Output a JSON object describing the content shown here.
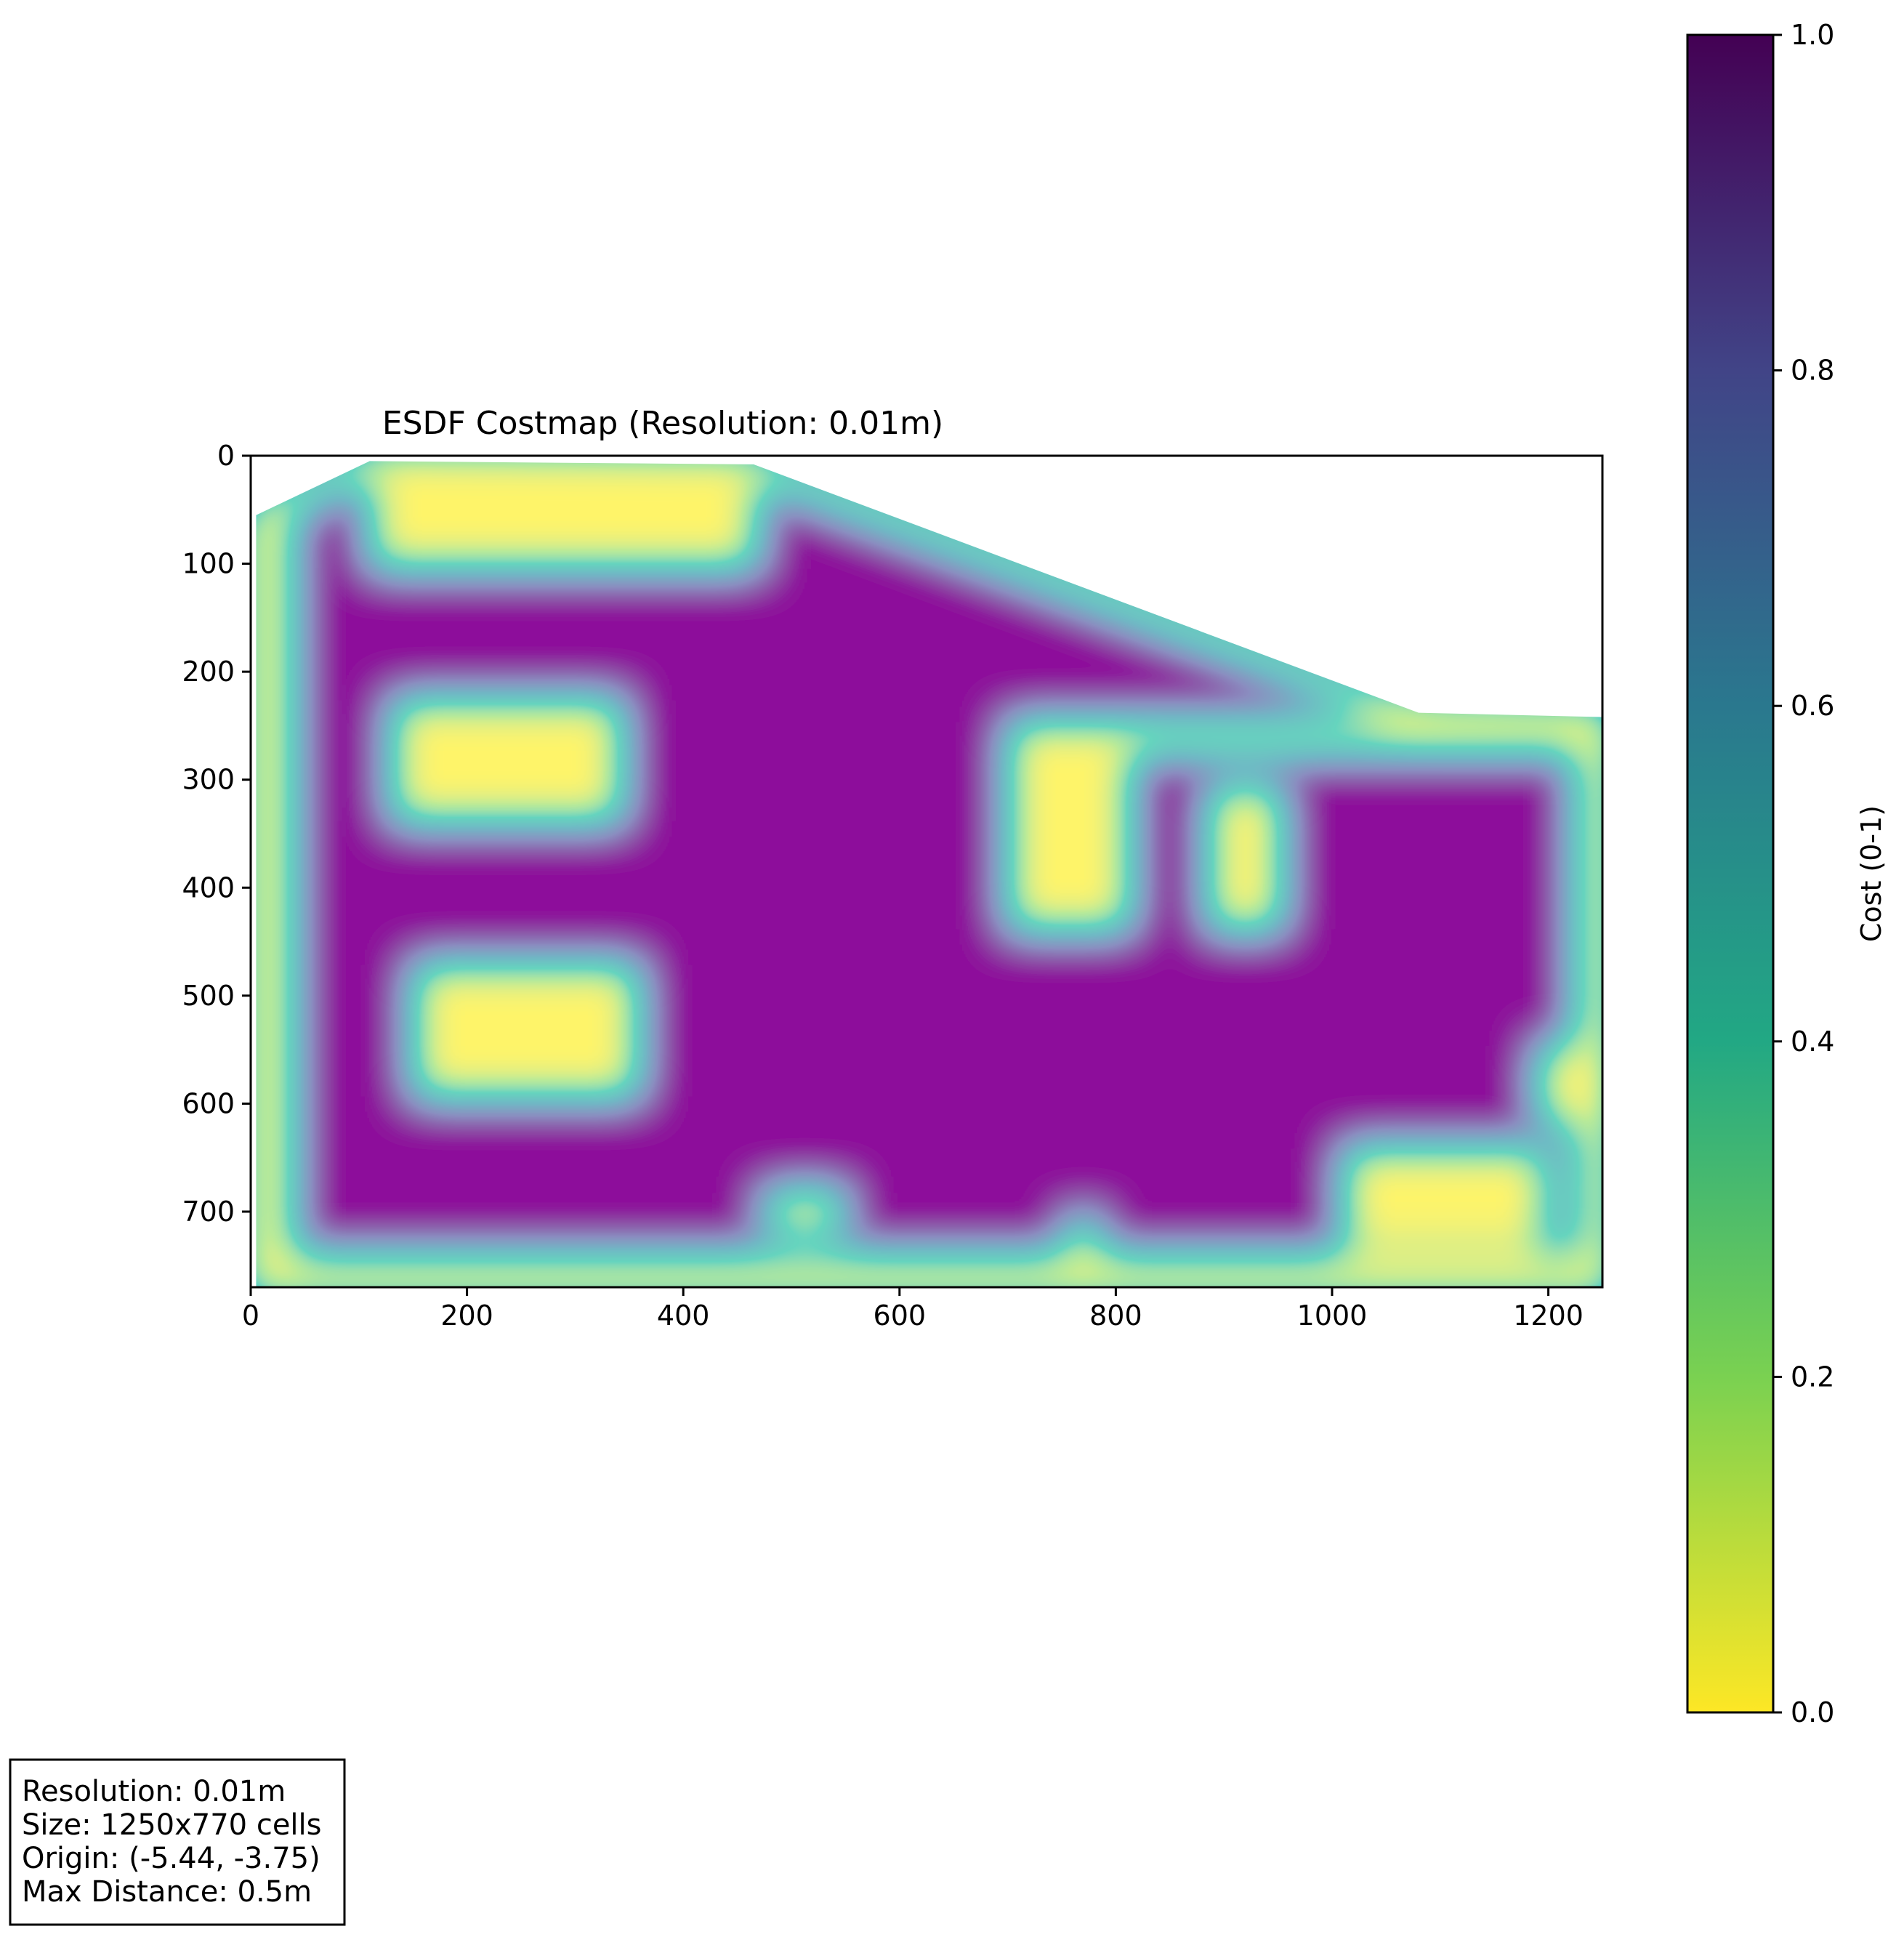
{
  "chart_data": {
    "type": "heatmap",
    "title": "ESDF Costmap (Resolution: 0.01m)",
    "xlabel": "",
    "ylabel": "",
    "xlim": [
      0,
      1250
    ],
    "ylim": [
      770,
      0
    ],
    "xticks": [
      0,
      200,
      400,
      600,
      800,
      1000,
      1200
    ],
    "yticks": [
      0,
      100,
      200,
      300,
      400,
      500,
      600,
      700
    ],
    "colorbar": {
      "label": "Cost (0-1)",
      "range": [
        0.0,
        1.0
      ],
      "ticks": [
        "0.0",
        "0.2",
        "0.4",
        "0.6",
        "0.8",
        "1.0"
      ],
      "colormap": "viridis (reversed)",
      "colors": [
        "#fde725",
        "#7ad151",
        "#22a884",
        "#2a788e",
        "#414487",
        "#440154"
      ]
    },
    "free_space_boundary": [
      [
        5,
        55
      ],
      [
        110,
        5
      ],
      [
        465,
        8
      ],
      [
        1080,
        238
      ],
      [
        1250,
        242
      ],
      [
        1250,
        770
      ],
      [
        5,
        770
      ]
    ],
    "obstacles": [
      {
        "x": [
          110,
          470
        ],
        "y": [
          5,
          105
        ]
      },
      {
        "x": [
          130,
          345
        ],
        "y": [
          225,
          340
        ]
      },
      {
        "x": [
          150,
          360
        ],
        "y": [
          470,
          595
        ]
      },
      {
        "x": [
          700,
          815
        ],
        "y": [
          255,
          440
        ]
      },
      {
        "x": [
          885,
          955
        ],
        "y": [
          305,
          440
        ]
      },
      {
        "x": [
          1010,
          1200
        ],
        "y": [
          640,
          735
        ]
      },
      {
        "x": [
          1190,
          1235
        ],
        "y": [
          545,
          620
        ]
      },
      {
        "x": [
          700,
          1250
        ],
        "y": [
          245,
          275
        ]
      },
      {
        "x": [
          5,
          40
        ],
        "y": [
          55,
          770
        ]
      },
      {
        "x": [
          1225,
          1250
        ],
        "y": [
          242,
          770
        ]
      },
      {
        "x": [
          5,
          1250
        ],
        "y": [
          740,
          770
        ]
      },
      {
        "x": [
          475,
          550
        ],
        "y": [
          680,
          720
        ]
      },
      {
        "x": [
          755,
          785
        ],
        "y": [
          705,
          740
        ]
      }
    ],
    "info_box": [
      "Resolution: 0.01m",
      "Size: 1250x770 cells",
      "Origin: (-5.44, -3.75)",
      "Max Distance: 0.5m"
    ]
  }
}
